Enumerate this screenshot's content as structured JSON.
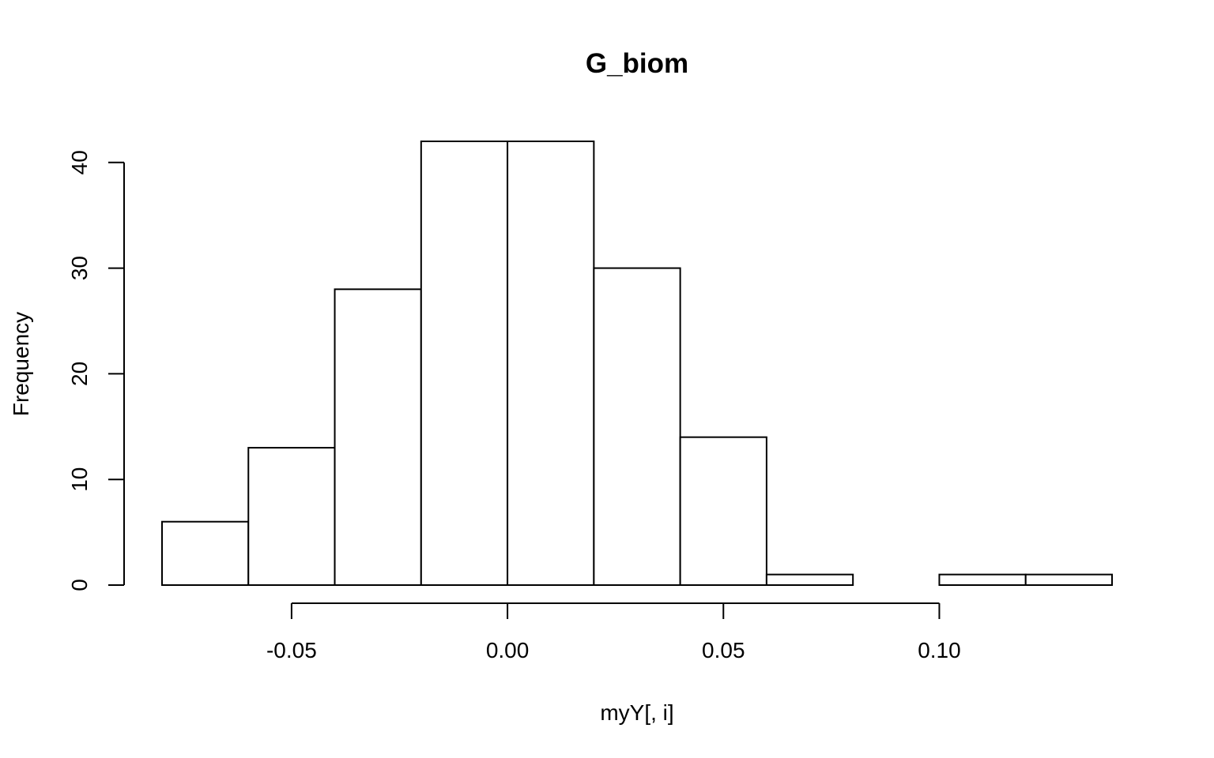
{
  "chart_data": {
    "type": "bar",
    "title": "G_biom",
    "xlabel": "myY[, i]",
    "ylabel": "Frequency",
    "bins": [
      {
        "start": -0.08,
        "end": -0.06,
        "count": 6
      },
      {
        "start": -0.06,
        "end": -0.04,
        "count": 13
      },
      {
        "start": -0.04,
        "end": -0.02,
        "count": 28
      },
      {
        "start": -0.02,
        "end": 0.0,
        "count": 42
      },
      {
        "start": 0.0,
        "end": 0.02,
        "count": 42
      },
      {
        "start": 0.02,
        "end": 0.04,
        "count": 30
      },
      {
        "start": 0.04,
        "end": 0.06,
        "count": 14
      },
      {
        "start": 0.06,
        "end": 0.08,
        "count": 1
      },
      {
        "start": 0.08,
        "end": 0.1,
        "count": 0
      },
      {
        "start": 0.1,
        "end": 0.12,
        "count": 1
      },
      {
        "start": 0.12,
        "end": 0.14,
        "count": 1
      }
    ],
    "x_ticks": [
      {
        "value": -0.05,
        "label": "-0.05"
      },
      {
        "value": 0.0,
        "label": "0.00"
      },
      {
        "value": 0.05,
        "label": "0.05"
      },
      {
        "value": 0.1,
        "label": "0.10"
      }
    ],
    "y_ticks": [
      {
        "value": 0,
        "label": "0"
      },
      {
        "value": 10,
        "label": "10"
      },
      {
        "value": 20,
        "label": "20"
      },
      {
        "value": 30,
        "label": "30"
      },
      {
        "value": 40,
        "label": "40"
      }
    ],
    "xlim": [
      -0.08,
      0.14
    ],
    "ylim": [
      0,
      42
    ],
    "grid": false,
    "bar_fill": "#ffffff",
    "bar_stroke": "#000000"
  }
}
